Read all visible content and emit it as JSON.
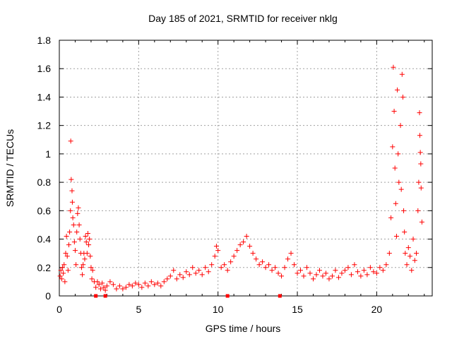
{
  "chart_data": {
    "type": "scatter",
    "title": "Day 185 of 2021, SRMTID for receiver nklg",
    "xlabel": "GPS time / hours",
    "ylabel": "SRMTID / TECUs",
    "xlim": [
      0,
      23.5
    ],
    "ylim": [
      0,
      1.8
    ],
    "xticks": [
      "0",
      "5",
      "10",
      "15",
      "20"
    ],
    "yticks": [
      "0",
      "0.2",
      "0.4",
      "0.6",
      "0.8",
      "1",
      "1.2",
      "1.4",
      "1.6",
      "1.8"
    ],
    "grid": true,
    "marker_color": "#ff0000",
    "series": [
      {
        "name": "SRMTID",
        "marker": "plus",
        "points": [
          [
            0.05,
            0.14
          ],
          [
            0.1,
            0.18
          ],
          [
            0.15,
            0.12
          ],
          [
            0.2,
            0.2
          ],
          [
            0.25,
            0.16
          ],
          [
            0.3,
            0.22
          ],
          [
            0.35,
            0.1
          ],
          [
            0.4,
            0.3
          ],
          [
            0.45,
            0.42
          ],
          [
            0.5,
            0.28
          ],
          [
            0.55,
            0.18
          ],
          [
            0.6,
            0.36
          ],
          [
            0.65,
            0.45
          ],
          [
            0.7,
            0.6
          ],
          [
            0.72,
            1.09
          ],
          [
            0.75,
            0.82
          ],
          [
            0.8,
            0.74
          ],
          [
            0.82,
            0.66
          ],
          [
            0.85,
            0.55
          ],
          [
            0.9,
            0.5
          ],
          [
            0.95,
            0.38
          ],
          [
            1.0,
            0.32
          ],
          [
            1.05,
            0.22
          ],
          [
            1.1,
            0.45
          ],
          [
            1.15,
            0.58
          ],
          [
            1.2,
            0.62
          ],
          [
            1.25,
            0.5
          ],
          [
            1.3,
            0.4
          ],
          [
            1.35,
            0.3
          ],
          [
            1.4,
            0.2
          ],
          [
            1.45,
            0.15
          ],
          [
            1.5,
            0.22
          ],
          [
            1.55,
            0.3
          ],
          [
            1.6,
            0.26
          ],
          [
            1.65,
            0.42
          ],
          [
            1.7,
            0.38
          ],
          [
            1.75,
            0.3
          ],
          [
            1.8,
            0.44
          ],
          [
            1.85,
            0.36
          ],
          [
            1.9,
            0.4
          ],
          [
            1.95,
            0.28
          ],
          [
            2.0,
            0.2
          ],
          [
            2.05,
            0.12
          ],
          [
            2.1,
            0.18
          ],
          [
            2.2,
            0.1
          ],
          [
            2.3,
            0.06
          ],
          [
            2.4,
            0.1
          ],
          [
            2.5,
            0.08
          ],
          [
            2.6,
            0.05
          ],
          [
            2.7,
            0.09
          ],
          [
            2.8,
            0.06
          ],
          [
            2.9,
            0.04
          ],
          [
            3.0,
            0.07
          ],
          [
            3.2,
            0.1
          ],
          [
            3.4,
            0.08
          ],
          [
            3.6,
            0.05
          ],
          [
            3.8,
            0.07
          ],
          [
            4.0,
            0.05
          ],
          [
            4.2,
            0.06
          ],
          [
            4.4,
            0.08
          ],
          [
            4.6,
            0.07
          ],
          [
            4.8,
            0.09
          ],
          [
            5.0,
            0.08
          ],
          [
            5.2,
            0.06
          ],
          [
            5.4,
            0.09
          ],
          [
            5.6,
            0.07
          ],
          [
            5.8,
            0.1
          ],
          [
            6.0,
            0.08
          ],
          [
            6.2,
            0.09
          ],
          [
            6.4,
            0.07
          ],
          [
            6.6,
            0.1
          ],
          [
            6.8,
            0.12
          ],
          [
            7.0,
            0.14
          ],
          [
            7.2,
            0.18
          ],
          [
            7.4,
            0.12
          ],
          [
            7.6,
            0.15
          ],
          [
            7.8,
            0.13
          ],
          [
            8.0,
            0.17
          ],
          [
            8.2,
            0.15
          ],
          [
            8.4,
            0.2
          ],
          [
            8.6,
            0.16
          ],
          [
            8.8,
            0.18
          ],
          [
            9.0,
            0.15
          ],
          [
            9.2,
            0.2
          ],
          [
            9.4,
            0.17
          ],
          [
            9.6,
            0.22
          ],
          [
            9.8,
            0.28
          ],
          [
            9.9,
            0.35
          ],
          [
            10.0,
            0.32
          ],
          [
            10.2,
            0.2
          ],
          [
            10.4,
            0.22
          ],
          [
            10.6,
            0.18
          ],
          [
            10.8,
            0.24
          ],
          [
            11.0,
            0.28
          ],
          [
            11.2,
            0.32
          ],
          [
            11.4,
            0.36
          ],
          [
            11.6,
            0.38
          ],
          [
            11.8,
            0.42
          ],
          [
            12.0,
            0.35
          ],
          [
            12.2,
            0.3
          ],
          [
            12.4,
            0.26
          ],
          [
            12.6,
            0.22
          ],
          [
            12.8,
            0.24
          ],
          [
            13.0,
            0.2
          ],
          [
            13.2,
            0.22
          ],
          [
            13.4,
            0.18
          ],
          [
            13.6,
            0.2
          ],
          [
            13.8,
            0.16
          ],
          [
            14.0,
            0.14
          ],
          [
            14.2,
            0.2
          ],
          [
            14.4,
            0.26
          ],
          [
            14.6,
            0.3
          ],
          [
            14.8,
            0.22
          ],
          [
            15.0,
            0.16
          ],
          [
            15.2,
            0.18
          ],
          [
            15.4,
            0.14
          ],
          [
            15.6,
            0.2
          ],
          [
            15.8,
            0.16
          ],
          [
            16.0,
            0.12
          ],
          [
            16.2,
            0.15
          ],
          [
            16.4,
            0.18
          ],
          [
            16.6,
            0.14
          ],
          [
            16.8,
            0.16
          ],
          [
            17.0,
            0.12
          ],
          [
            17.2,
            0.14
          ],
          [
            17.4,
            0.18
          ],
          [
            17.6,
            0.13
          ],
          [
            17.8,
            0.16
          ],
          [
            18.0,
            0.18
          ],
          [
            18.2,
            0.2
          ],
          [
            18.4,
            0.15
          ],
          [
            18.6,
            0.22
          ],
          [
            18.8,
            0.17
          ],
          [
            19.0,
            0.14
          ],
          [
            19.2,
            0.18
          ],
          [
            19.4,
            0.15
          ],
          [
            19.6,
            0.2
          ],
          [
            19.8,
            0.17
          ],
          [
            20.0,
            0.16
          ],
          [
            20.2,
            0.2
          ],
          [
            20.4,
            0.18
          ],
          [
            20.6,
            0.22
          ],
          [
            20.8,
            0.3
          ],
          [
            20.9,
            0.55
          ],
          [
            21.0,
            1.05
          ],
          [
            21.05,
            1.61
          ],
          [
            21.1,
            1.3
          ],
          [
            21.15,
            0.9
          ],
          [
            21.2,
            0.65
          ],
          [
            21.25,
            0.42
          ],
          [
            21.3,
            1.45
          ],
          [
            21.35,
            1.0
          ],
          [
            21.4,
            0.8
          ],
          [
            21.5,
            1.2
          ],
          [
            21.55,
            0.75
          ],
          [
            21.6,
            1.56
          ],
          [
            21.65,
            1.4
          ],
          [
            21.7,
            0.6
          ],
          [
            21.75,
            0.45
          ],
          [
            21.8,
            0.3
          ],
          [
            21.9,
            0.22
          ],
          [
            22.0,
            0.34
          ],
          [
            22.1,
            0.28
          ],
          [
            22.2,
            0.18
          ],
          [
            22.3,
            0.4
          ],
          [
            22.4,
            0.25
          ],
          [
            22.5,
            0.3
          ],
          [
            22.6,
            0.6
          ],
          [
            22.65,
            0.8
          ],
          [
            22.7,
            1.29
          ],
          [
            22.72,
            1.13
          ],
          [
            22.75,
            1.01
          ],
          [
            22.78,
            0.93
          ],
          [
            22.8,
            0.76
          ],
          [
            22.85,
            0.52
          ]
        ]
      }
    ],
    "gap_markers": [
      2.3,
      2.9,
      10.6,
      13.9
    ]
  }
}
